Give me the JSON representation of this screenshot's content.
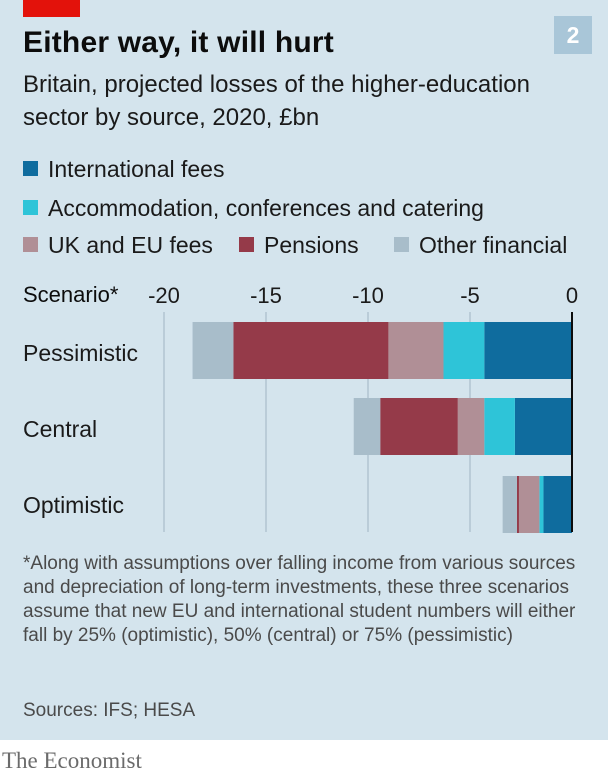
{
  "header": {
    "title": "Either way, it will hurt",
    "subtitle": "Britain, projected losses of the higher-education sector by source, 2020, £bn",
    "badge": "2"
  },
  "legend": [
    {
      "label": "International fees",
      "color": "#0f6c9e"
    },
    {
      "label": "Accommodation, conferences and catering",
      "color": "#2ec4d8"
    },
    {
      "label": "UK and EU fees",
      "color": "#b08f96"
    },
    {
      "label": "Pensions",
      "color": "#953a49"
    },
    {
      "label": "Other financial",
      "color": "#a8bdca"
    }
  ],
  "chart_data": {
    "type": "bar",
    "orientation": "horizontal",
    "stacked": true,
    "axis_header": "Scenario*",
    "categories": [
      "Pessimistic",
      "Central",
      "Optimistic"
    ],
    "xlim": [
      -20,
      0
    ],
    "xticks": [
      -20,
      -15,
      -10,
      -5,
      0
    ],
    "grid": true,
    "series": [
      {
        "name": "International fees",
        "color": "#0f6c9e",
        "values": [
          -4.3,
          -2.8,
          -1.4
        ]
      },
      {
        "name": "Accommodation, conferences and catering",
        "color": "#2ec4d8",
        "values": [
          -2.0,
          -1.5,
          -0.2
        ]
      },
      {
        "name": "UK and EU fees",
        "color": "#b08f96",
        "values": [
          -2.7,
          -1.3,
          -1.0
        ]
      },
      {
        "name": "Pensions",
        "color": "#953a49",
        "values": [
          -7.6,
          -3.8,
          -0.1
        ]
      },
      {
        "name": "Other financial",
        "color": "#a8bdca",
        "values": [
          -2.0,
          -1.3,
          -0.7
        ]
      }
    ]
  },
  "footnote": "*Along with assumptions over falling income from various sources and depreciation of long-term investments, these three scenarios assume that new EU and international student numbers will either fall by 25% (optimistic), 50% (central) or 75% (pessimistic)",
  "sources": "Sources: IFS; HESA",
  "brand": "The Economist"
}
